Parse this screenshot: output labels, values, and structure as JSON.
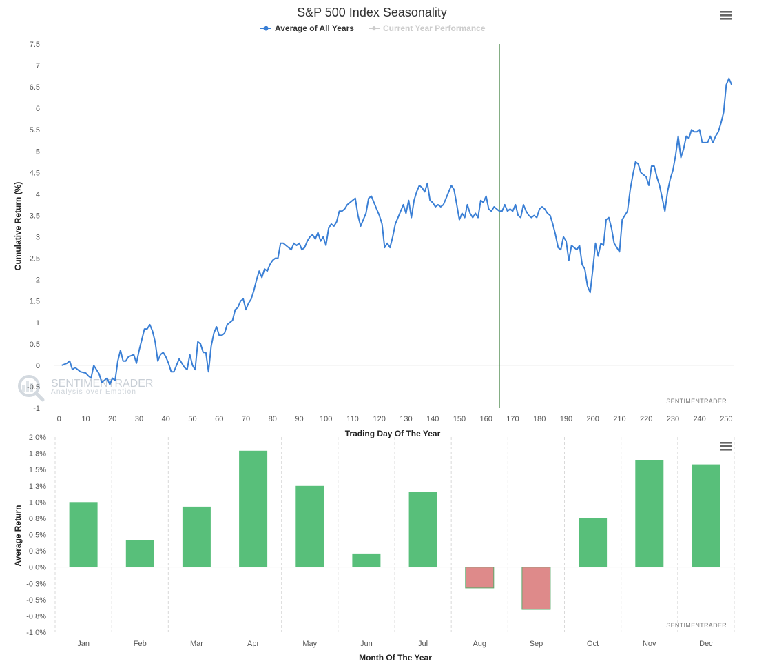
{
  "chart_data": [
    {
      "type": "line",
      "title": "S&P 500 Index Seasonality",
      "legend": [
        {
          "name": "Average of All Years",
          "color": "#3a7fd5",
          "active": true
        },
        {
          "name": "Current Year Performance",
          "color": "#cccccc",
          "active": false
        }
      ],
      "xlabel": "Trading Day Of The Year",
      "ylabel": "Cumulative Return (%)",
      "xlim": [
        -2,
        253
      ],
      "ylim": [
        -1,
        7.5
      ],
      "x_ticks": [
        0,
        10,
        20,
        30,
        40,
        50,
        60,
        70,
        80,
        90,
        100,
        110,
        120,
        130,
        140,
        150,
        160,
        170,
        180,
        190,
        200,
        210,
        220,
        230,
        240,
        250
      ],
      "y_ticks": [
        -1,
        -0.5,
        0,
        0.5,
        1,
        1.5,
        2,
        2.5,
        3,
        3.5,
        4,
        4.5,
        5,
        5.5,
        6,
        6.5,
        7,
        7.5
      ],
      "y_tick_labels": [
        "-1",
        "-0.5",
        "0",
        "0.5",
        "1",
        "1.5",
        "2",
        "2.5",
        "3",
        "3.5",
        "4",
        "4.5",
        "5",
        "5.5",
        "6",
        "6.5",
        "7",
        "7.5"
      ],
      "current_day_marker": 165,
      "credit": "SENTIMENTRADER",
      "series": [
        {
          "name": "Average of All Years",
          "points": [
            [
              1,
              0
            ],
            [
              3,
              0.05
            ],
            [
              4,
              0.1
            ],
            [
              5,
              -0.1
            ],
            [
              6,
              -0.05
            ],
            [
              7,
              -0.1
            ],
            [
              8,
              -0.15
            ],
            [
              10,
              -0.18
            ],
            [
              11,
              -0.25
            ],
            [
              12,
              -0.3
            ],
            [
              13,
              0
            ],
            [
              14,
              -0.1
            ],
            [
              15,
              -0.2
            ],
            [
              16,
              -0.4
            ],
            [
              18,
              -0.3
            ],
            [
              19,
              -0.45
            ],
            [
              20,
              -0.3
            ],
            [
              21,
              -0.35
            ],
            [
              22,
              0.1
            ],
            [
              23,
              0.35
            ],
            [
              24,
              0.1
            ],
            [
              25,
              0.1
            ],
            [
              26,
              0.2
            ],
            [
              28,
              0.25
            ],
            [
              29,
              0.05
            ],
            [
              30,
              0.35
            ],
            [
              31,
              0.6
            ],
            [
              32,
              0.85
            ],
            [
              33,
              0.85
            ],
            [
              34,
              0.95
            ],
            [
              35,
              0.8
            ],
            [
              36,
              0.55
            ],
            [
              37,
              0.1
            ],
            [
              38,
              0.25
            ],
            [
              39,
              0.3
            ],
            [
              40,
              0.2
            ],
            [
              41,
              0.05
            ],
            [
              42,
              -0.15
            ],
            [
              43,
              -0.15
            ],
            [
              44,
              0
            ],
            [
              45,
              0.15
            ],
            [
              46,
              0.05
            ],
            [
              47,
              -0.05
            ],
            [
              48,
              -0.1
            ],
            [
              49,
              0.25
            ],
            [
              50,
              0
            ],
            [
              51,
              -0.1
            ],
            [
              52,
              0.55
            ],
            [
              53,
              0.5
            ],
            [
              54,
              0.3
            ],
            [
              55,
              0.3
            ],
            [
              56,
              -0.15
            ],
            [
              57,
              0.45
            ],
            [
              58,
              0.75
            ],
            [
              59,
              0.9
            ],
            [
              60,
              0.7
            ],
            [
              61,
              0.7
            ],
            [
              62,
              0.75
            ],
            [
              63,
              0.95
            ],
            [
              64,
              1.0
            ],
            [
              65,
              1.05
            ],
            [
              66,
              1.3
            ],
            [
              67,
              1.35
            ],
            [
              68,
              1.5
            ],
            [
              69,
              1.55
            ],
            [
              70,
              1.3
            ],
            [
              71,
              1.45
            ],
            [
              72,
              1.55
            ],
            [
              73,
              1.75
            ],
            [
              74,
              2.0
            ],
            [
              75,
              2.2
            ],
            [
              76,
              2.05
            ],
            [
              77,
              2.25
            ],
            [
              78,
              2.2
            ],
            [
              79,
              2.35
            ],
            [
              80,
              2.45
            ],
            [
              81,
              2.5
            ],
            [
              82,
              2.5
            ],
            [
              83,
              2.85
            ],
            [
              84,
              2.85
            ],
            [
              85,
              2.8
            ],
            [
              86,
              2.75
            ],
            [
              87,
              2.7
            ],
            [
              88,
              2.85
            ],
            [
              89,
              2.8
            ],
            [
              90,
              2.85
            ],
            [
              91,
              2.7
            ],
            [
              92,
              2.75
            ],
            [
              93,
              2.9
            ],
            [
              94,
              3.0
            ],
            [
              95,
              3.05
            ],
            [
              96,
              2.95
            ],
            [
              97,
              3.1
            ],
            [
              98,
              2.9
            ],
            [
              99,
              3.0
            ],
            [
              100,
              2.8
            ],
            [
              101,
              3.2
            ],
            [
              102,
              3.3
            ],
            [
              103,
              3.25
            ],
            [
              104,
              3.35
            ],
            [
              105,
              3.6
            ],
            [
              106,
              3.6
            ],
            [
              107,
              3.65
            ],
            [
              108,
              3.75
            ],
            [
              109,
              3.8
            ],
            [
              110,
              3.85
            ],
            [
              111,
              3.9
            ],
            [
              112,
              3.5
            ],
            [
              113,
              3.25
            ],
            [
              114,
              3.4
            ],
            [
              115,
              3.55
            ],
            [
              116,
              3.9
            ],
            [
              117,
              3.95
            ],
            [
              118,
              3.8
            ],
            [
              119,
              3.65
            ],
            [
              120,
              3.5
            ],
            [
              121,
              3.3
            ],
            [
              122,
              2.75
            ],
            [
              123,
              2.85
            ],
            [
              124,
              2.75
            ],
            [
              125,
              3.0
            ],
            [
              126,
              3.3
            ],
            [
              127,
              3.45
            ],
            [
              128,
              3.6
            ],
            [
              129,
              3.75
            ],
            [
              130,
              3.55
            ],
            [
              131,
              3.85
            ],
            [
              132,
              3.45
            ],
            [
              133,
              3.85
            ],
            [
              134,
              4.05
            ],
            [
              135,
              4.2
            ],
            [
              136,
              4.15
            ],
            [
              137,
              4.05
            ],
            [
              138,
              4.25
            ],
            [
              139,
              3.85
            ],
            [
              140,
              3.8
            ],
            [
              141,
              3.7
            ],
            [
              142,
              3.75
            ],
            [
              143,
              3.7
            ],
            [
              144,
              3.75
            ],
            [
              145,
              3.9
            ],
            [
              146,
              4.05
            ],
            [
              147,
              4.2
            ],
            [
              148,
              4.1
            ],
            [
              149,
              3.75
            ],
            [
              150,
              3.4
            ],
            [
              151,
              3.55
            ],
            [
              152,
              3.45
            ],
            [
              153,
              3.75
            ],
            [
              154,
              3.55
            ],
            [
              155,
              3.45
            ],
            [
              156,
              3.55
            ],
            [
              157,
              3.45
            ],
            [
              158,
              3.85
            ],
            [
              159,
              3.8
            ],
            [
              160,
              3.95
            ],
            [
              161,
              3.65
            ],
            [
              162,
              3.6
            ],
            [
              163,
              3.7
            ],
            [
              164,
              3.65
            ],
            [
              165,
              3.6
            ],
            [
              166,
              3.6
            ],
            [
              167,
              3.75
            ],
            [
              168,
              3.6
            ],
            [
              169,
              3.65
            ],
            [
              170,
              3.6
            ],
            [
              171,
              3.75
            ],
            [
              172,
              3.5
            ],
            [
              173,
              3.45
            ],
            [
              174,
              3.75
            ],
            [
              175,
              3.6
            ],
            [
              176,
              3.5
            ],
            [
              177,
              3.45
            ],
            [
              178,
              3.5
            ],
            [
              179,
              3.45
            ],
            [
              180,
              3.65
            ],
            [
              181,
              3.7
            ],
            [
              182,
              3.65
            ],
            [
              183,
              3.55
            ],
            [
              184,
              3.5
            ],
            [
              185,
              3.3
            ],
            [
              186,
              3.05
            ],
            [
              187,
              2.75
            ],
            [
              188,
              2.7
            ],
            [
              189,
              3.0
            ],
            [
              190,
              2.9
            ],
            [
              191,
              2.45
            ],
            [
              192,
              2.8
            ],
            [
              193,
              2.75
            ],
            [
              194,
              2.7
            ],
            [
              195,
              2.8
            ],
            [
              196,
              2.35
            ],
            [
              197,
              2.25
            ],
            [
              198,
              1.85
            ],
            [
              199,
              1.7
            ],
            [
              200,
              2.25
            ],
            [
              201,
              2.85
            ],
            [
              202,
              2.55
            ],
            [
              203,
              2.85
            ],
            [
              204,
              2.8
            ],
            [
              205,
              3.4
            ],
            [
              206,
              3.45
            ],
            [
              207,
              3.2
            ],
            [
              208,
              2.85
            ],
            [
              209,
              2.75
            ],
            [
              210,
              2.65
            ],
            [
              211,
              3.4
            ],
            [
              212,
              3.5
            ],
            [
              213,
              3.6
            ],
            [
              214,
              4.1
            ],
            [
              215,
              4.45
            ],
            [
              216,
              4.75
            ],
            [
              217,
              4.7
            ],
            [
              218,
              4.5
            ],
            [
              219,
              4.45
            ],
            [
              220,
              4.4
            ],
            [
              221,
              4.2
            ],
            [
              222,
              4.65
            ],
            [
              223,
              4.65
            ],
            [
              224,
              4.4
            ],
            [
              225,
              4.2
            ],
            [
              226,
              3.9
            ],
            [
              227,
              3.6
            ],
            [
              228,
              4.05
            ],
            [
              229,
              4.35
            ],
            [
              230,
              4.55
            ],
            [
              231,
              4.9
            ],
            [
              232,
              5.35
            ],
            [
              233,
              4.85
            ],
            [
              234,
              5.05
            ],
            [
              235,
              5.35
            ],
            [
              236,
              5.3
            ],
            [
              237,
              5.5
            ],
            [
              238,
              5.45
            ],
            [
              239,
              5.45
            ],
            [
              240,
              5.5
            ],
            [
              241,
              5.2
            ],
            [
              242,
              5.2
            ],
            [
              243,
              5.2
            ],
            [
              244,
              5.35
            ],
            [
              245,
              5.2
            ],
            [
              246,
              5.35
            ],
            [
              247,
              5.45
            ],
            [
              248,
              5.65
            ],
            [
              249,
              5.9
            ],
            [
              250,
              6.55
            ],
            [
              251,
              6.7
            ],
            [
              252,
              6.55
            ]
          ]
        }
      ]
    },
    {
      "type": "bar",
      "title": "",
      "xlabel": "Month Of The Year",
      "ylabel": "Average Return",
      "ylim": [
        -1.0,
        2.0
      ],
      "y_ticks": [
        -1.0,
        -0.75,
        -0.5,
        -0.25,
        0,
        0.25,
        0.5,
        0.75,
        1.0,
        1.25,
        1.5,
        1.75,
        2.0
      ],
      "y_tick_labels": [
        "-1.0%",
        "-0.8%",
        "-0.5%",
        "-0.3%",
        "0.0%",
        "0.3%",
        "0.5%",
        "0.8%",
        "1.0%",
        "1.3%",
        "1.5%",
        "1.8%",
        "2.0%"
      ],
      "categories": [
        "Jan",
        "Feb",
        "Mar",
        "Apr",
        "May",
        "Jun",
        "Jul",
        "Aug",
        "Sep",
        "Oct",
        "Nov",
        "Dec"
      ],
      "values": [
        1.0,
        0.42,
        0.93,
        1.79,
        1.25,
        0.21,
        1.16,
        -0.32,
        -0.65,
        0.75,
        1.64,
        1.58
      ],
      "positive_color": "#58bf7a",
      "negative_color": "#de8a8a",
      "credit": "SENTIMENTRADER"
    }
  ],
  "watermark": {
    "name": "SENTIMENTRADER",
    "tagline": "Analysis over Emotion"
  },
  "menu_icon": "hamburger-menu-icon"
}
